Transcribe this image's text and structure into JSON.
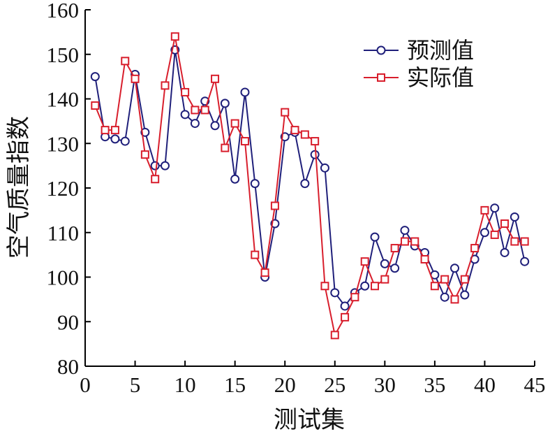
{
  "chart_data": {
    "type": "line",
    "title": "",
    "xlabel": "测试集",
    "ylabel": "空气质量指数",
    "xlim": [
      0,
      45
    ],
    "ylim": [
      80,
      160
    ],
    "xticks": [
      0,
      5,
      10,
      15,
      20,
      25,
      30,
      35,
      40,
      45
    ],
    "yticks": [
      80,
      90,
      100,
      110,
      120,
      130,
      140,
      150,
      160
    ],
    "grid": false,
    "legend": "top-right",
    "x": [
      1,
      2,
      3,
      4,
      5,
      6,
      7,
      8,
      9,
      10,
      11,
      12,
      13,
      14,
      15,
      16,
      17,
      18,
      19,
      20,
      21,
      22,
      23,
      24,
      25,
      26,
      27,
      28,
      29,
      30,
      31,
      32,
      33,
      34,
      35,
      36,
      37,
      38,
      39,
      40,
      41,
      42,
      43,
      44
    ],
    "series": [
      {
        "name": "预测值",
        "color": "#1f1f7a",
        "marker": "circle",
        "values": [
          145,
          131.5,
          131,
          130.5,
          145.5,
          132.5,
          125,
          125,
          151,
          136.5,
          134.5,
          139.5,
          134,
          139,
          122,
          141.5,
          121,
          100,
          112,
          131.5,
          132.5,
          121,
          127.5,
          124.5,
          96.5,
          93.5,
          96.5,
          98,
          109,
          103,
          102,
          110.5,
          107,
          105.5,
          100.5,
          95.5,
          102,
          96,
          104,
          110,
          115.5,
          105.5,
          113.5,
          103.5
        ]
      },
      {
        "name": "实际值",
        "color": "#d81e2c",
        "marker": "square",
        "values": [
          138.5,
          133,
          133,
          148.5,
          144.5,
          127.5,
          122,
          143,
          154,
          141.5,
          137.5,
          137.5,
          144.5,
          129,
          134.5,
          130.5,
          105,
          101,
          116,
          137,
          133,
          132,
          130.5,
          98,
          87,
          91,
          95.5,
          103.5,
          98,
          99.5,
          106.5,
          108,
          108,
          104,
          98,
          99.5,
          95,
          99.5,
          106.5,
          115,
          109.5,
          112,
          108,
          108
        ]
      }
    ]
  }
}
